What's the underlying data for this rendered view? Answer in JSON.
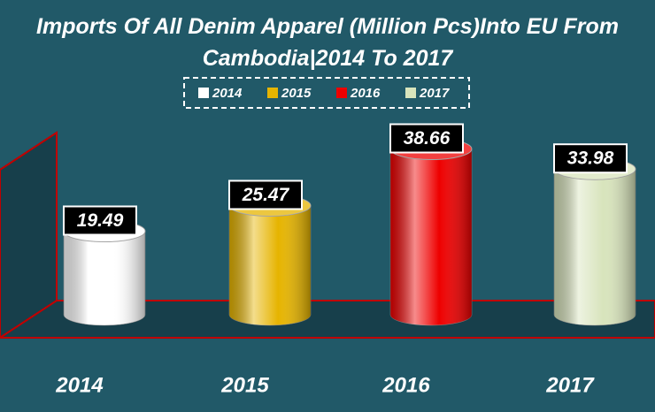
{
  "chart_data": {
    "type": "bar",
    "title": "Imports Of All Denim Apparel (Million Pcs)Into EU From Cambodia|2014 To 2017",
    "categories": [
      "2014",
      "2015",
      "2016",
      "2017"
    ],
    "values": [
      19.49,
      25.47,
      38.66,
      33.98
    ],
    "colors": [
      "#ffffff",
      "#e6b400",
      "#ee0000",
      "#d8e4bc"
    ],
    "legend": "top"
  }
}
